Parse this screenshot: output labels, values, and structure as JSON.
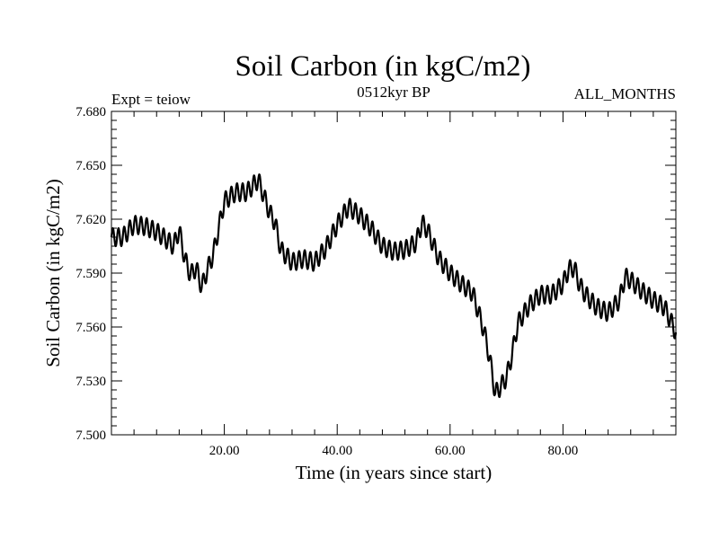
{
  "chart_data": {
    "type": "line",
    "title": "Soil Carbon (in kgC/m2)",
    "subtitle": "0512kyr BP",
    "annotation_left": "Expt = teiow",
    "annotation_right": "ALL_MONTHS",
    "xlabel": "Time (in years since start)",
    "ylabel": "Soil Carbon (in kgC/m2)",
    "xlim": [
      0,
      100
    ],
    "ylim": [
      7.5,
      7.68
    ],
    "xticks": [
      20,
      40,
      60,
      80
    ],
    "xtick_labels": [
      "20.00",
      "40.00",
      "60.00",
      "80.00"
    ],
    "yticks": [
      7.5,
      7.53,
      7.56,
      7.59,
      7.62,
      7.65,
      7.68
    ],
    "ytick_labels": [
      "7.500",
      "7.530",
      "7.560",
      "7.590",
      "7.620",
      "7.650",
      "7.680"
    ],
    "grid": false,
    "series": [
      {
        "color": "#000000",
        "seasonal_amplitude": 0.005,
        "x": [
          0,
          2,
          4,
          6,
          8,
          10,
          11,
          12,
          13,
          14,
          15,
          16,
          17,
          18,
          20,
          22,
          24,
          26,
          27,
          28,
          29,
          30,
          32,
          34,
          36,
          38,
          40,
          42,
          44,
          46,
          48,
          50,
          52,
          54,
          55,
          56,
          58,
          60,
          62,
          64,
          66,
          67,
          68,
          69,
          70,
          71,
          72,
          74,
          76,
          78,
          80,
          81,
          82,
          83,
          84,
          86,
          88,
          90,
          91,
          92,
          94,
          96,
          98,
          100
        ],
        "y": [
          7.61,
          7.61,
          7.617,
          7.616,
          7.613,
          7.608,
          7.605,
          7.614,
          7.598,
          7.589,
          7.593,
          7.582,
          7.592,
          7.6,
          7.63,
          7.635,
          7.635,
          7.642,
          7.633,
          7.624,
          7.618,
          7.603,
          7.596,
          7.598,
          7.596,
          7.604,
          7.617,
          7.627,
          7.622,
          7.615,
          7.605,
          7.602,
          7.603,
          7.607,
          7.618,
          7.614,
          7.598,
          7.59,
          7.584,
          7.579,
          7.558,
          7.543,
          7.523,
          7.527,
          7.532,
          7.545,
          7.562,
          7.572,
          7.578,
          7.578,
          7.584,
          7.592,
          7.593,
          7.583,
          7.578,
          7.571,
          7.568,
          7.575,
          7.588,
          7.586,
          7.58,
          7.575,
          7.571,
          7.557
        ]
      }
    ]
  }
}
